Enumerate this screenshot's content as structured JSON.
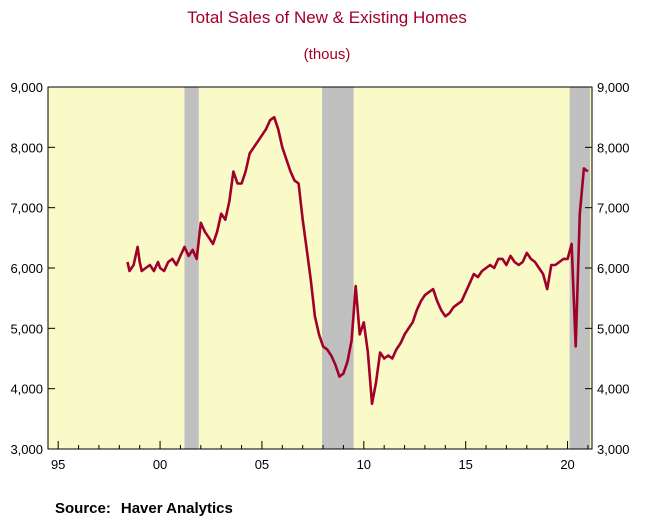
{
  "chart_data": {
    "type": "line",
    "title": "Total Sales of New & Existing Homes",
    "subtitle": "(thous)",
    "xlabel": "",
    "ylabel": "",
    "xlim": [
      1994.5,
      2021.2
    ],
    "ylim": [
      3000,
      9000
    ],
    "y_ticks": [
      3000,
      4000,
      5000,
      6000,
      7000,
      8000,
      9000
    ],
    "y_tick_labels": [
      "3,000",
      "4,000",
      "5,000",
      "6,000",
      "7,000",
      "8,000",
      "9,000"
    ],
    "x_tick_years": [
      1995,
      2000,
      2005,
      2010,
      2015,
      2020
    ],
    "x_tick_labels": [
      "95",
      "00",
      "05",
      "10",
      "15",
      "20"
    ],
    "recessions": [
      [
        2001.2,
        2001.9
      ],
      [
        2007.95,
        2009.5
      ],
      [
        2020.1,
        2021.1
      ]
    ],
    "colors": {
      "line": "#a0002a",
      "plot_bg": "#fafac8",
      "recession": "#c0c0c0",
      "title": "#a0002a"
    },
    "grid": false,
    "legend": "none",
    "series": [
      {
        "x": [
          1998.4,
          1998.5,
          1998.7,
          1998.9,
          1999.0,
          1999.1,
          1999.3,
          1999.5,
          1999.7,
          1999.9,
          2000.0,
          2000.2,
          2000.4,
          2000.6,
          2000.8,
          2001.0,
          2001.2,
          2001.4,
          2001.6,
          2001.8,
          2002.0,
          2002.2,
          2002.4,
          2002.6,
          2002.8,
          2003.0,
          2003.2,
          2003.4,
          2003.6,
          2003.8,
          2004.0,
          2004.2,
          2004.4,
          2004.6,
          2004.8,
          2005.0,
          2005.2,
          2005.4,
          2005.6,
          2005.8,
          2006.0,
          2006.2,
          2006.4,
          2006.6,
          2006.8,
          2007.0,
          2007.2,
          2007.4,
          2007.6,
          2007.8,
          2008.0,
          2008.2,
          2008.4,
          2008.6,
          2008.8,
          2009.0,
          2009.2,
          2009.4,
          2009.6,
          2009.8,
          2010.0,
          2010.2,
          2010.4,
          2010.6,
          2010.8,
          2011.0,
          2011.2,
          2011.4,
          2011.6,
          2011.8,
          2012.0,
          2012.2,
          2012.4,
          2012.6,
          2012.8,
          2013.0,
          2013.2,
          2013.4,
          2013.6,
          2013.8,
          2014.0,
          2014.2,
          2014.4,
          2014.6,
          2014.8,
          2015.0,
          2015.2,
          2015.4,
          2015.6,
          2015.8,
          2016.0,
          2016.2,
          2016.4,
          2016.6,
          2016.8,
          2017.0,
          2017.2,
          2017.4,
          2017.6,
          2017.8,
          2018.0,
          2018.2,
          2018.4,
          2018.6,
          2018.8,
          2019.0,
          2019.2,
          2019.4,
          2019.6,
          2019.8,
          2020.0,
          2020.2,
          2020.4,
          2020.6,
          2020.8,
          2021.0
        ],
        "y": [
          6100,
          5950,
          6050,
          6350,
          6100,
          5950,
          6000,
          6050,
          5950,
          6100,
          6000,
          5950,
          6100,
          6150,
          6050,
          6200,
          6350,
          6200,
          6300,
          6150,
          6750,
          6600,
          6500,
          6400,
          6600,
          6900,
          6800,
          7100,
          7600,
          7400,
          7400,
          7600,
          7900,
          8000,
          8100,
          8200,
          8300,
          8450,
          8500,
          8300,
          8000,
          7800,
          7600,
          7450,
          7400,
          6800,
          6300,
          5800,
          5200,
          4900,
          4700,
          4650,
          4550,
          4400,
          4200,
          4250,
          4450,
          4800,
          5700,
          4900,
          5100,
          4600,
          3750,
          4100,
          4600,
          4500,
          4550,
          4500,
          4650,
          4750,
          4900,
          5000,
          5100,
          5300,
          5450,
          5550,
          5600,
          5650,
          5450,
          5300,
          5200,
          5250,
          5350,
          5400,
          5450,
          5600,
          5750,
          5900,
          5850,
          5950,
          6000,
          6050,
          6000,
          6150,
          6150,
          6050,
          6200,
          6100,
          6050,
          6100,
          6250,
          6150,
          6100,
          6000,
          5900,
          5650,
          6050,
          6050,
          6100,
          6150,
          6150,
          6400,
          4700,
          6900,
          7650,
          7600
        ]
      }
    ]
  },
  "source": {
    "label": "Source:",
    "text": "Haver Analytics"
  }
}
